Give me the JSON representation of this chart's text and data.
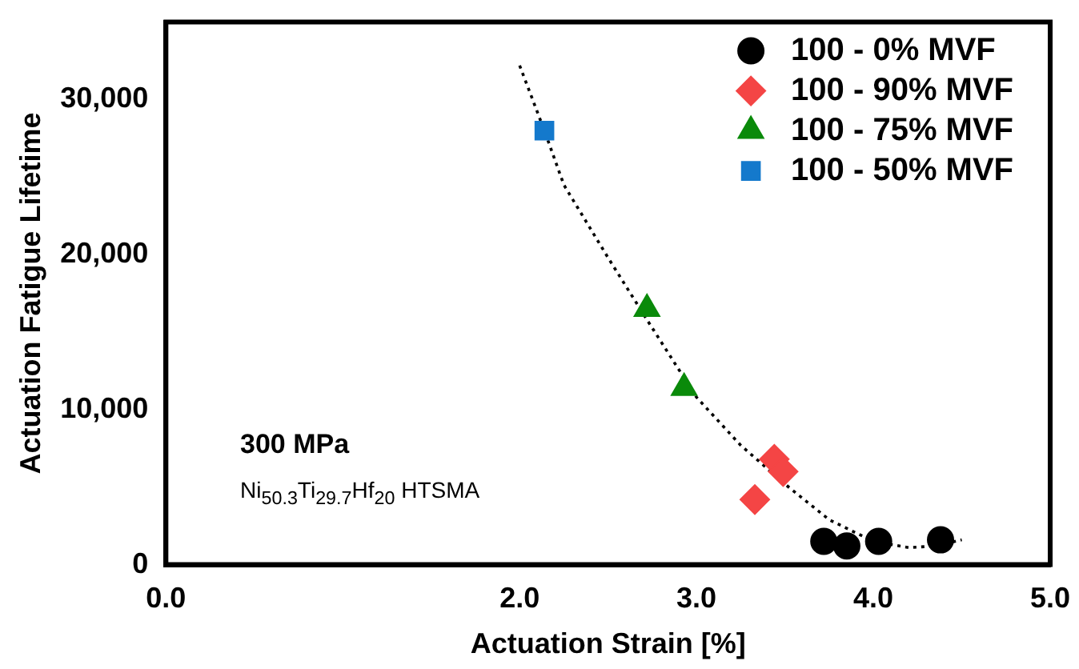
{
  "chart_data": {
    "type": "scatter",
    "xlabel": "Actuation Strain [%]",
    "ylabel": "Actuation Fatigue Lifetime",
    "xlim": [
      0,
      5
    ],
    "xticks": [
      {
        "value": 0,
        "label": "0.0"
      },
      {
        "value": 2,
        "label": "2.0"
      },
      {
        "value": 3,
        "label": "3.0"
      },
      {
        "value": 4,
        "label": "4.0"
      },
      {
        "value": 5,
        "label": "5.0"
      }
    ],
    "ylim": [
      0,
      35000
    ],
    "yticks": [
      0,
      {
        "value": 10000,
        "label": "10,000"
      },
      {
        "value": 20000,
        "label": "20,000"
      },
      {
        "value": 30000,
        "label": "30,000"
      }
    ],
    "grid": false,
    "legend": "top right",
    "annotations": [
      "300 MPa",
      "Ni$_{50.3}$Ti$_{29.7}$Hf$_{20}$  HTSMA"
    ],
    "series": [
      {
        "name": "100 - 0% MVF",
        "color": "#000000",
        "marker": "circle",
        "x": [
          3.72,
          3.85,
          4.03,
          4.38
        ],
        "values": [
          1500,
          1200,
          1500,
          1600
        ]
      },
      {
        "name": "100 - 90% MVF",
        "color": "#f44545",
        "marker": "diamond",
        "x": [
          3.33,
          3.44,
          3.49
        ],
        "values": [
          4200,
          6800,
          6000
        ]
      },
      {
        "name": "100 - 75% MVF",
        "color": "#0a8a0a",
        "marker": "triangle",
        "x": [
          2.72,
          2.93
        ],
        "values": [
          16500,
          11400
        ]
      },
      {
        "name": "100 - 50% MVF",
        "color": "#1479cc",
        "marker": "square",
        "x": [
          2.14
        ],
        "values": [
          28000
        ]
      },
      {
        "type": "line",
        "color": "#000000",
        "marker": "none",
        "line_style": "dotted",
        "x": [
          2.0,
          2.14,
          2.25,
          2.5,
          2.72,
          3.0,
          3.25,
          3.5,
          3.75,
          4.0,
          4.2,
          4.35,
          4.5
        ],
        "values": [
          32200,
          28000,
          24500,
          19800,
          15800,
          10800,
          7700,
          5200,
          2900,
          1500,
          1100,
          1200,
          1600
        ]
      }
    ]
  }
}
